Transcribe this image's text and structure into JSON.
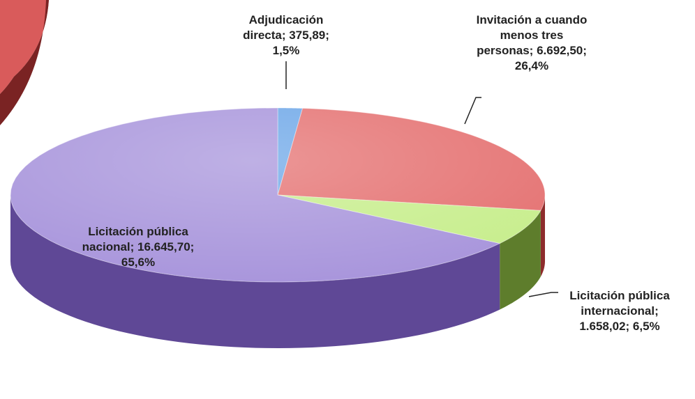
{
  "chart_data": {
    "type": "pie3d",
    "values": [
      375.89,
      6692.5,
      1658.02,
      16645.7
    ],
    "value_labels": [
      "Adjudicación directa; 375,89; 1,5%",
      "Invitación a cuando menos tres personas; 6.692,50; 26,4%",
      "Licitación pública internacional; 1.658,02; 6,5%",
      "Licitación pública nacional; 16.645,70; 65,6%"
    ],
    "colors": [
      "#6fa8e8",
      "#e57373",
      "#c8ee8e",
      "#a996dc"
    ],
    "side_colors": [
      "#3f6fae",
      "#8e2c2c",
      "#5e7d2c",
      "#5f4896"
    ]
  }
}
